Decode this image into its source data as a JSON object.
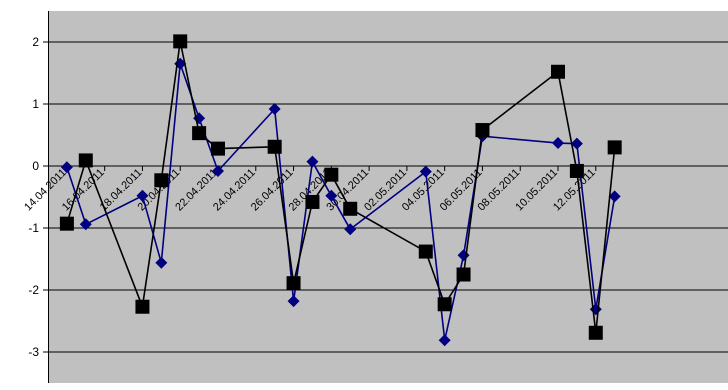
{
  "chart_data": {
    "type": "line",
    "title": "",
    "xlabel": "",
    "ylabel": "",
    "x_range": [
      "2011-04-13",
      "2011-05-19"
    ],
    "ylim": [
      -3.5,
      2.5
    ],
    "yticks": [
      -3,
      -2,
      -1,
      0,
      1,
      2
    ],
    "y_tick_labels": [
      "-3",
      "-2",
      "-1",
      "0",
      "1",
      "2"
    ],
    "x_tick_labels": [
      "14.04.2011",
      "16.04.2011",
      "18.04.2011",
      "20.04.2011",
      "22.04.2011",
      "24.04.2011",
      "26.04.2011",
      "28.04.2011",
      "30.04.2011",
      "02.05.2011",
      "04.05.2011",
      "06.05.2011",
      "08.05.2011",
      "10.05.2011",
      "12.05.2011"
    ],
    "x_tick_dates": [
      "2011-04-14",
      "2011-04-16",
      "2011-04-18",
      "2011-04-20",
      "2011-04-22",
      "2011-04-24",
      "2011-04-26",
      "2011-04-28",
      "2011-04-30",
      "2011-05-02",
      "2011-05-04",
      "2011-05-06",
      "2011-05-08",
      "2011-05-10",
      "2011-05-12"
    ],
    "grid": "horizontal",
    "plot_background": "#c0c0c0",
    "legend": "none",
    "series": [
      {
        "color": "#000080",
        "marker": "diamond",
        "points": [
          [
            "2011-04-14",
            -0.02
          ],
          [
            "2011-04-15",
            -0.94
          ],
          [
            "2011-04-18",
            -0.48
          ],
          [
            "2011-04-19",
            -1.56
          ],
          [
            "2011-04-20",
            1.65
          ],
          [
            "2011-04-21",
            0.77
          ],
          [
            "2011-04-22",
            -0.08
          ],
          [
            "2011-04-25",
            0.92
          ],
          [
            "2011-04-26",
            -2.18
          ],
          [
            "2011-04-27",
            0.07
          ],
          [
            "2011-04-28",
            -0.48
          ],
          [
            "2011-04-29",
            -1.02
          ],
          [
            "2011-05-03",
            -0.09
          ],
          [
            "2011-05-04",
            -2.81
          ],
          [
            "2011-05-05",
            -1.44
          ],
          [
            "2011-05-06",
            0.48
          ],
          [
            "2011-05-10",
            0.37
          ],
          [
            "2011-05-11",
            0.36
          ],
          [
            "2011-05-12",
            -2.31
          ],
          [
            "2011-05-13",
            -0.49
          ]
        ]
      },
      {
        "color": "#000000",
        "marker": "square",
        "points": [
          [
            "2011-04-14",
            -0.93
          ],
          [
            "2011-04-15",
            0.09
          ],
          [
            "2011-04-18",
            -2.27
          ],
          [
            "2011-04-19",
            -0.23
          ],
          [
            "2011-04-20",
            2.01
          ],
          [
            "2011-04-21",
            0.53
          ],
          [
            "2011-04-22",
            0.28
          ],
          [
            "2011-04-25",
            0.31
          ],
          [
            "2011-04-26",
            -1.89
          ],
          [
            "2011-04-27",
            -0.58
          ],
          [
            "2011-04-28",
            -0.14
          ],
          [
            "2011-04-29",
            -0.69
          ],
          [
            "2011-05-03",
            -1.38
          ],
          [
            "2011-05-04",
            -2.23
          ],
          [
            "2011-05-05",
            -1.75
          ],
          [
            "2011-05-06",
            0.58
          ],
          [
            "2011-05-10",
            1.52
          ],
          [
            "2011-05-11",
            -0.08
          ],
          [
            "2011-05-12",
            -2.69
          ],
          [
            "2011-05-13",
            0.3
          ]
        ]
      }
    ]
  }
}
